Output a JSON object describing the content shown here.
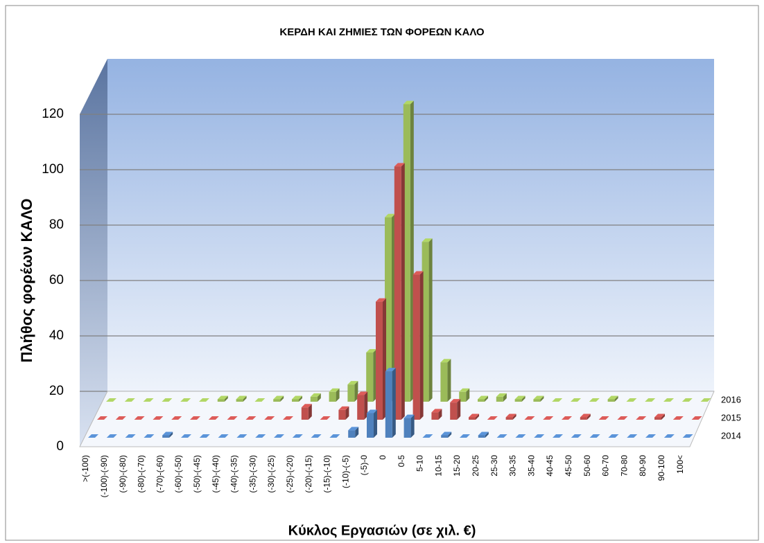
{
  "chart_data": {
    "type": "bar3d",
    "title": "ΚΕΡΔΗ ΚΑΙ ΖΗΜΙΕΣ ΤΩΝ ΦΟΡΕΩΝ ΚΑΛΟ",
    "x_label": "Κύκλος Εργασιών (σε χιλ. €)",
    "y_label": "Πλήθος  φορέων ΚΑΛΟ",
    "categories": [
      ">(-100)",
      "(-100)-(-90)",
      "(-90)-(-80)",
      "(-80)-(-70)",
      "(-70)-(-60)",
      "(-60)-(-50)",
      "(-50)-(-45)",
      "(-45)-(-40)",
      "(-40)-(-35)",
      "(-35)-(-30)",
      "(-30)-(-25)",
      "(-25)-(-20)",
      "(-20)-(-15)",
      "(-15)-(-10)",
      "(-10)-(-5)",
      "(-5)-0",
      "0",
      "0-5",
      "5-10",
      "10-15",
      "15-20",
      "20-25",
      "25-30",
      "30-35",
      "35-40",
      "40-45",
      "45-50",
      "50-60",
      "60-70",
      "70-80",
      "80-90",
      "90-100",
      "100<"
    ],
    "series": [
      {
        "name": "2014",
        "color": "#4f81bd",
        "values": [
          0,
          0,
          0,
          0,
          1,
          0,
          0,
          0,
          0,
          0,
          0,
          0,
          0,
          0,
          3,
          10,
          27,
          8,
          0,
          1,
          0,
          1,
          0,
          0,
          0,
          0,
          0,
          0,
          0,
          0,
          0,
          0,
          0
        ]
      },
      {
        "name": "2015",
        "color": "#c0504d",
        "values": [
          0,
          0,
          0,
          0,
          0,
          0,
          0,
          0,
          0,
          0,
          0,
          5,
          0,
          4,
          10,
          48,
          103,
          59,
          3,
          7,
          1,
          0,
          1,
          0,
          0,
          0,
          1,
          0,
          0,
          0,
          1,
          0,
          0
        ]
      },
      {
        "name": "2016",
        "color": "#9bbb59",
        "values": [
          0,
          0,
          0,
          0,
          0,
          0,
          1,
          1,
          0,
          1,
          1,
          2,
          4,
          7,
          20,
          75,
          121,
          65,
          16,
          4,
          1,
          2,
          1,
          1,
          0,
          0,
          0,
          1,
          0,
          0,
          0,
          0,
          0
        ]
      }
    ],
    "ylim": [
      0,
      120
    ],
    "yticks": [
      0,
      20,
      40,
      60,
      80,
      100,
      120
    ],
    "grid": true
  }
}
